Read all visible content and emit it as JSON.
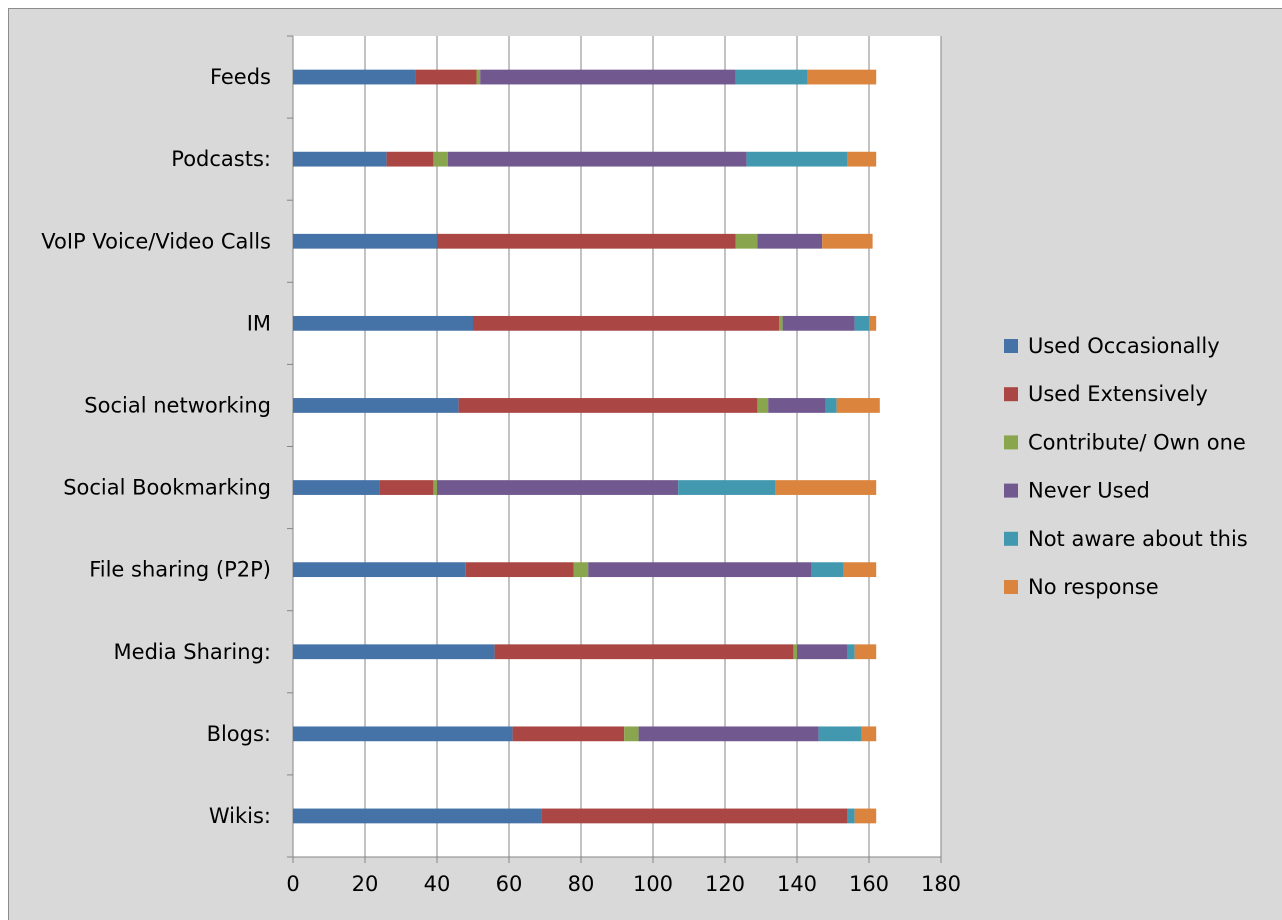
{
  "chart_data": {
    "type": "bar",
    "orientation": "horizontal",
    "stacked": true,
    "title": "",
    "xlabel": "",
    "ylabel": "",
    "xlim": [
      0,
      180
    ],
    "x_ticks": [
      0,
      20,
      40,
      60,
      80,
      100,
      120,
      140,
      160,
      180
    ],
    "grid": "vertical major gridlines",
    "legend_position": "right",
    "categories": [
      "Wikis:",
      "Blogs:",
      "Media Sharing:",
      "File sharing (P2P)",
      "Social Bookmarking",
      "Social networking",
      "IM",
      "VoIP Voice/Video Calls",
      "Podcasts:",
      "Feeds"
    ],
    "series": [
      {
        "name": "Used Occasionally",
        "color": "#4572a7",
        "values": [
          69,
          61,
          56,
          48,
          24,
          46,
          50,
          40,
          26,
          34
        ]
      },
      {
        "name": "Used Extensively",
        "color": "#aa4643",
        "values": [
          85,
          31,
          83,
          30,
          15,
          83,
          85,
          83,
          13,
          17
        ]
      },
      {
        "name": "Contribute/ Own one",
        "color": "#89a54e",
        "values": [
          0,
          4,
          1,
          4,
          1,
          3,
          1,
          6,
          4,
          1
        ]
      },
      {
        "name": "Never Used",
        "color": "#71588f",
        "values": [
          0,
          50,
          14,
          62,
          67,
          16,
          20,
          18,
          83,
          71
        ]
      },
      {
        "name": "Not aware about this",
        "color": "#4198af",
        "values": [
          2,
          12,
          2,
          9,
          27,
          3,
          4,
          0,
          28,
          20
        ]
      },
      {
        "name": "No response",
        "color": "#db843d",
        "values": [
          6,
          4,
          6,
          9,
          28,
          12,
          2,
          14,
          8,
          19
        ]
      }
    ]
  }
}
